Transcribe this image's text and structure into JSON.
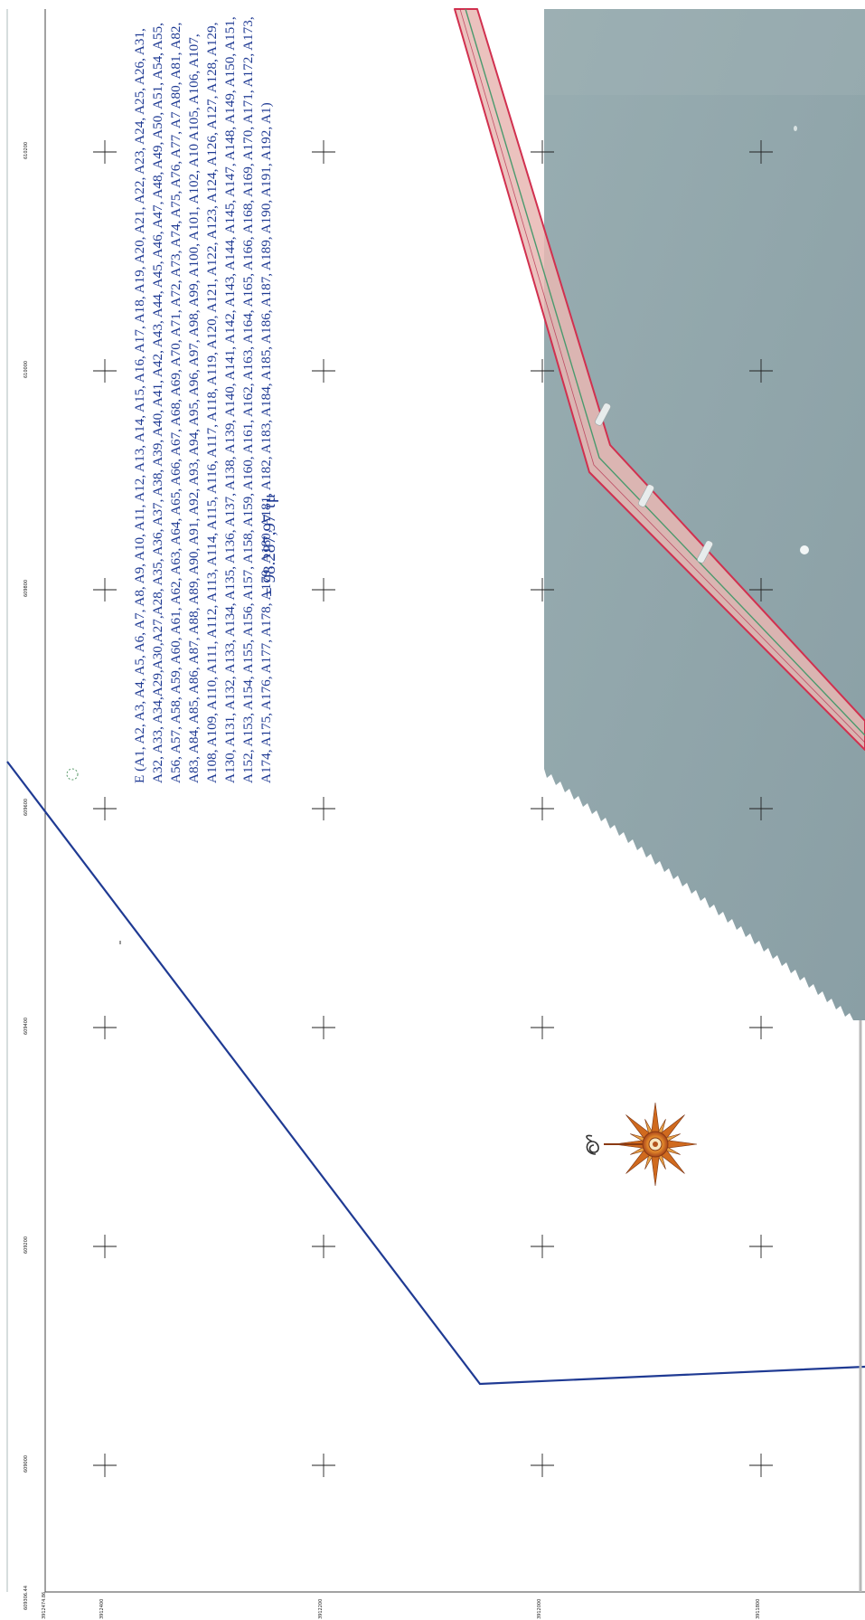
{
  "map": {
    "area_label": "E (A1, A2, A3, A4, A5, A6, A7, A8, A9, A10, A11, A12, A13, A14, A15, A16, A17, A18, A19, A20, A21, A22, A23, A24, A25, A26, A31, A32, A33, A34,A29,A30,A27,A28, A35, A36, A37, A38, A39, A40, A41, A42, A43, A44, A45, A46, A47, A48, A49, A50, A51, A54, A55, A56, A57, A58, A59, A60, A61, A62, A63, A64, A65, A66, A67, A68, A69, A70, A71, A72, A73, A74, A75, A76, A77, A7 A80, A81, A82, A83, A84, A85, A86, A87, A88, A89, A90, A91, A92, A93, A94, A95, A96, A97, A98, A99, A100, A101, A102, A10 A105, A106, A107, A108, A109, A110, A111, A112, A113, A114, A115, A116, A117, A118, A119, A120, A121, A122, A123, A124, A126, A127, A128, A129, A130, A131, A132, A133, A134, A135, A136, A137, A138, A139, A140, A141, A142, A143, A144, A145, A147, A148, A149, A150, A151, A152, A153, A154, A155, A156, A157, A158, A159, A160, A161, A162, A163, A164, A165, A166, A168, A169, A170, A171, A172, A173, A174, A175, A176, A177, A178, A179, A180, A181, A182, A183, A184, A185, A186, A187, A189, A190, A191, A192, A1)",
    "area_value": "= 98.287,97 τμ",
    "coords_top": [
      "609000",
      "609200",
      "609400",
      "609600",
      "609800",
      "610000",
      "610200"
    ],
    "coords_bottom": [
      "3912400",
      "3912200",
      "3912000",
      "3911800"
    ],
    "corner_label_1": "609306.44",
    "corner_label_2": "3912474.86",
    "colors": {
      "sea": "#8fa3a8",
      "corridor_fill": "#e8b7b3",
      "corridor_edge": "#d1304f",
      "centerline": "#4a9a6e",
      "boundary": "#1f3a93",
      "grid": "#222222"
    },
    "icons": [
      "compass-rose-icon",
      "north-arrow-icon",
      "grid-cross-icon"
    ]
  }
}
